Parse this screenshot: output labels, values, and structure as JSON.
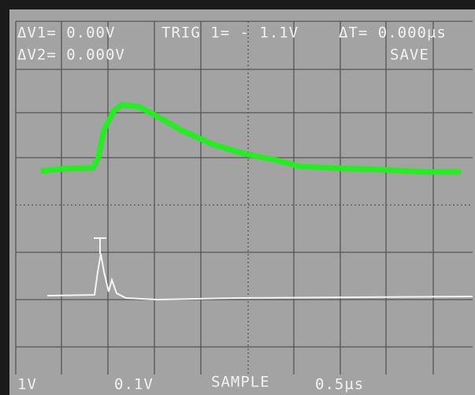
{
  "readout": {
    "dv1": "ΔV1= 0.00V",
    "dv2": "ΔV2= 0.000V",
    "trigger": "TRIG 1= - 1.1V",
    "dt": "ΔT= 0.000µs",
    "mode": "SAVE"
  },
  "footer": {
    "ch1_scale": "1V",
    "ch2_scale": "0.1V",
    "acquisition": "SAMPLE",
    "timebase": "0.5µs"
  }
}
